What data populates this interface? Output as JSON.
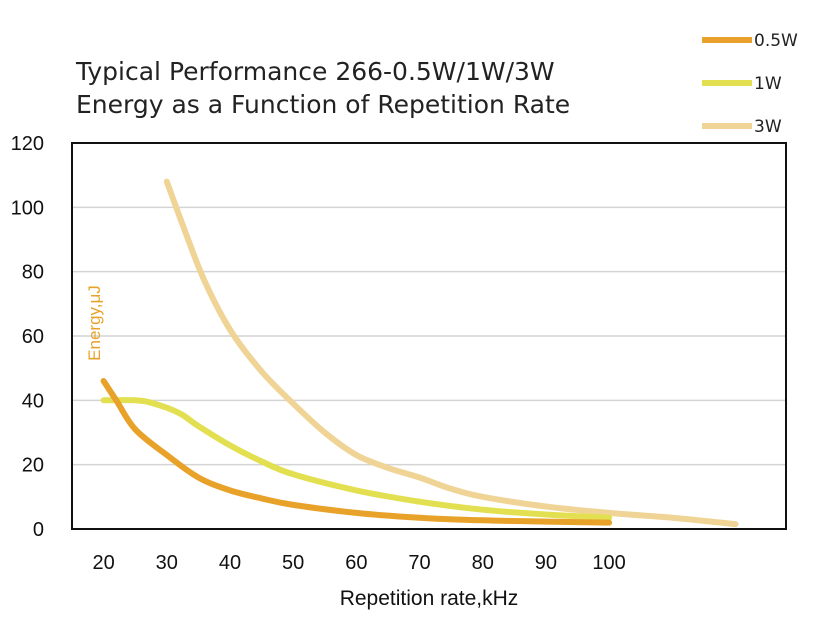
{
  "chart_data": {
    "type": "line",
    "title_lines": [
      "Typical Performance 266-0.5W/1W/3W",
      "Energy as a Function of  Repetition Rate"
    ],
    "xlabel": "Repetition rate,kHz",
    "ylabel": "Energy,μJ",
    "xlim": [
      15,
      128
    ],
    "ylim": [
      0,
      120
    ],
    "xticks": [
      20,
      30,
      40,
      50,
      60,
      70,
      80,
      90,
      100
    ],
    "yticks": [
      0,
      20,
      40,
      60,
      80,
      100,
      120
    ],
    "grid": true,
    "legend_position": "top-right",
    "series": [
      {
        "name": "0.5W",
        "color": "#e8a22a",
        "points": [
          [
            20,
            46
          ],
          [
            22,
            40
          ],
          [
            25,
            31
          ],
          [
            30,
            23
          ],
          [
            35,
            16
          ],
          [
            40,
            12
          ],
          [
            45,
            9.5
          ],
          [
            50,
            7.5
          ],
          [
            60,
            5
          ],
          [
            70,
            3.5
          ],
          [
            80,
            2.7
          ],
          [
            90,
            2.3
          ],
          [
            100,
            2
          ]
        ]
      },
      {
        "name": "1W",
        "color": "#e2e050",
        "points": [
          [
            20,
            40
          ],
          [
            25,
            40
          ],
          [
            28,
            39
          ],
          [
            32,
            36
          ],
          [
            35,
            32
          ],
          [
            40,
            26
          ],
          [
            45,
            21
          ],
          [
            50,
            17
          ],
          [
            60,
            12
          ],
          [
            70,
            8.5
          ],
          [
            80,
            6
          ],
          [
            90,
            4.5
          ],
          [
            100,
            3.5
          ]
        ]
      },
      {
        "name": "3W",
        "color": "#f0d496",
        "points": [
          [
            30,
            108
          ],
          [
            33,
            92
          ],
          [
            36,
            77
          ],
          [
            40,
            62
          ],
          [
            45,
            49
          ],
          [
            50,
            39
          ],
          [
            55,
            30
          ],
          [
            60,
            23
          ],
          [
            65,
            19
          ],
          [
            70,
            16
          ],
          [
            75,
            12.5
          ],
          [
            80,
            10
          ],
          [
            90,
            7
          ],
          [
            100,
            5
          ],
          [
            110,
            3.5
          ],
          [
            120,
            1.5
          ]
        ]
      }
    ]
  }
}
